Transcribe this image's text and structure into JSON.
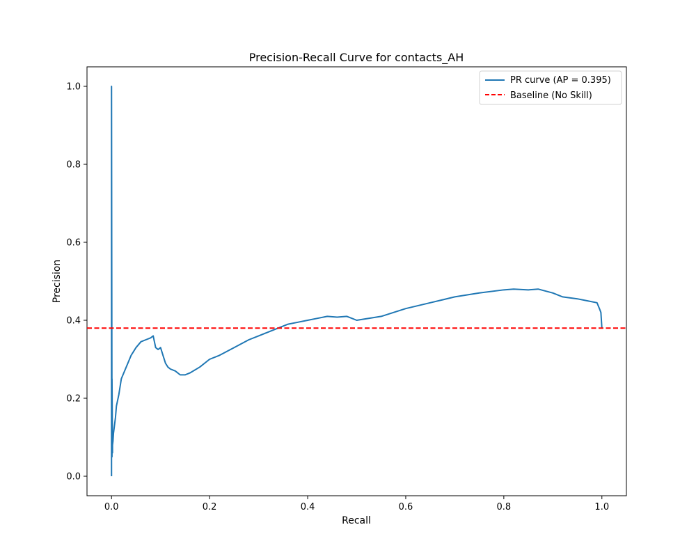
{
  "chart_data": {
    "type": "line",
    "title": "Precision-Recall Curve for contacts_AH",
    "xlabel": "Recall",
    "ylabel": "Precision",
    "xlim": [
      -0.05,
      1.05
    ],
    "ylim": [
      -0.05,
      1.05
    ],
    "xticks": [
      0.0,
      0.2,
      0.4,
      0.6,
      0.8,
      1.0
    ],
    "xtick_labels": [
      "0.0",
      "0.2",
      "0.4",
      "0.6",
      "0.8",
      "1.0"
    ],
    "yticks": [
      0.0,
      0.2,
      0.4,
      0.6,
      0.8,
      1.0
    ],
    "ytick_labels": [
      "0.0",
      "0.2",
      "0.4",
      "0.6",
      "0.8",
      "1.0"
    ],
    "grid": false,
    "legend": {
      "placement": "top-right"
    },
    "series": [
      {
        "name": "PR curve (AP = 0.395)",
        "color": "#1f77b4",
        "style": "solid",
        "x": [
          0.0,
          0.0,
          0.001,
          0.001,
          0.002,
          0.002,
          0.003,
          0.004,
          0.006,
          0.008,
          0.01,
          0.015,
          0.02,
          0.03,
          0.04,
          0.05,
          0.06,
          0.07,
          0.08,
          0.085,
          0.09,
          0.095,
          0.1,
          0.105,
          0.11,
          0.115,
          0.12,
          0.13,
          0.14,
          0.15,
          0.16,
          0.18,
          0.2,
          0.22,
          0.25,
          0.28,
          0.3,
          0.32,
          0.34,
          0.36,
          0.38,
          0.4,
          0.42,
          0.44,
          0.46,
          0.48,
          0.5,
          0.55,
          0.6,
          0.65,
          0.7,
          0.75,
          0.8,
          0.82,
          0.85,
          0.87,
          0.9,
          0.92,
          0.95,
          0.97,
          0.99,
          0.995,
          0.998,
          1.0
        ],
        "y": [
          0.0,
          1.0,
          0.05,
          0.25,
          0.06,
          0.08,
          0.09,
          0.11,
          0.13,
          0.15,
          0.18,
          0.21,
          0.25,
          0.28,
          0.31,
          0.33,
          0.345,
          0.35,
          0.355,
          0.36,
          0.33,
          0.325,
          0.33,
          0.31,
          0.29,
          0.28,
          0.275,
          0.27,
          0.26,
          0.26,
          0.265,
          0.28,
          0.3,
          0.31,
          0.33,
          0.35,
          0.36,
          0.37,
          0.38,
          0.39,
          0.395,
          0.4,
          0.405,
          0.41,
          0.408,
          0.41,
          0.4,
          0.41,
          0.43,
          0.445,
          0.46,
          0.47,
          0.478,
          0.48,
          0.478,
          0.48,
          0.47,
          0.46,
          0.455,
          0.45,
          0.445,
          0.43,
          0.42,
          0.38
        ]
      },
      {
        "name": "Baseline (No Skill)",
        "color": "#ff0000",
        "style": "dashed",
        "x": [
          -0.05,
          1.05
        ],
        "y": [
          0.38,
          0.38
        ]
      }
    ]
  }
}
